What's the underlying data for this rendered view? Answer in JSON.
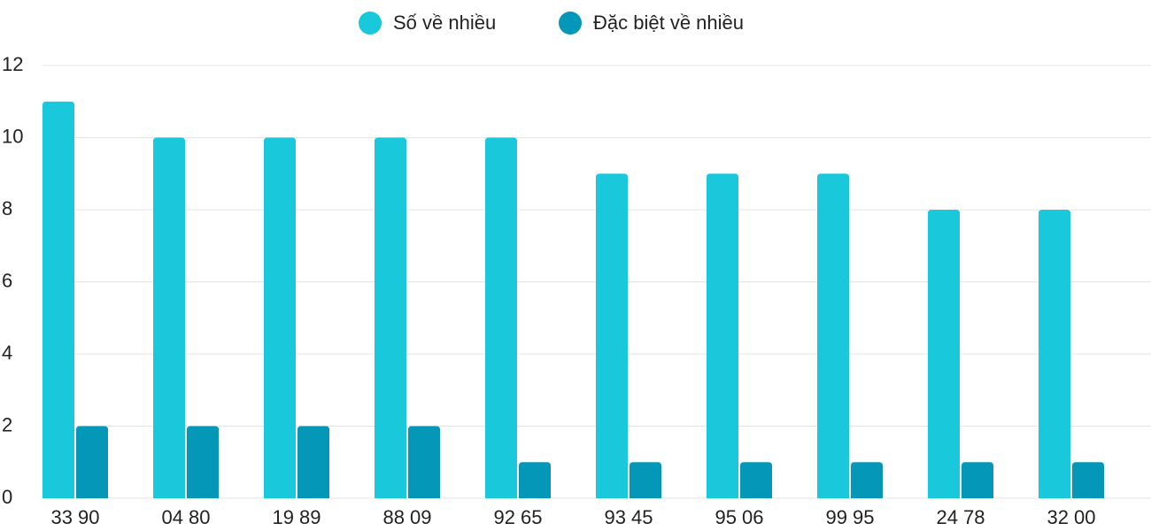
{
  "chart_data": {
    "type": "bar",
    "categories": [
      "33 90",
      "04 80",
      "19 89",
      "88 09",
      "92 65",
      "93 45",
      "95 06",
      "99 95",
      "24 78",
      "32 00"
    ],
    "series": [
      {
        "name": "Số về nhiều",
        "color": "#1ac8db",
        "values": [
          11,
          10,
          10,
          10,
          10,
          9,
          9,
          9,
          8,
          8
        ]
      },
      {
        "name": "Đặc biệt về nhiều",
        "color": "#0497b7",
        "values": [
          2,
          2,
          2,
          2,
          1,
          1,
          1,
          1,
          1,
          1
        ]
      }
    ],
    "ylim": [
      0,
      12
    ],
    "yticks": [
      0,
      2,
      4,
      6,
      8,
      10,
      12
    ],
    "grid": true,
    "legend": "top"
  }
}
